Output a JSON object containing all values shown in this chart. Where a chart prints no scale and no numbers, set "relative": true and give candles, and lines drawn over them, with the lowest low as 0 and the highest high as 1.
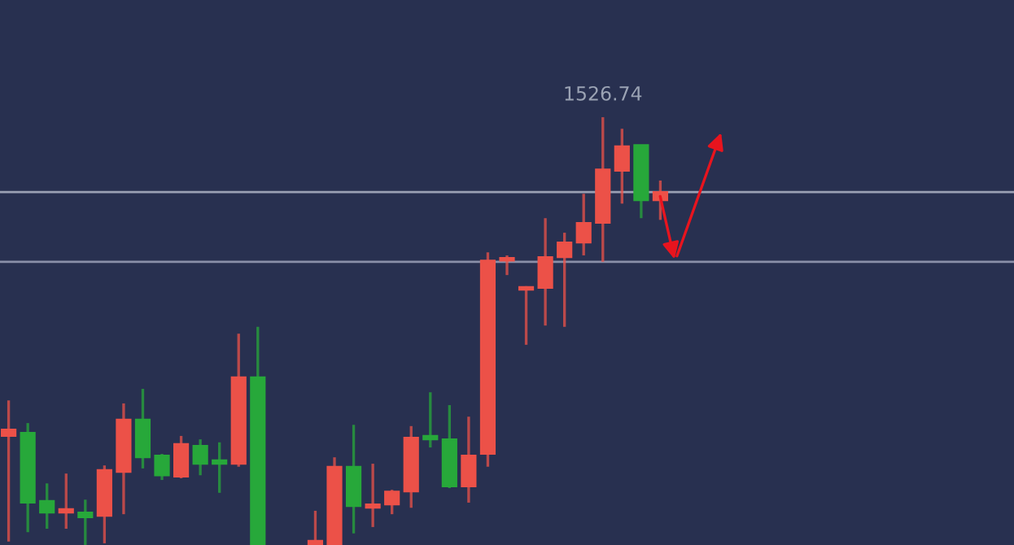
{
  "chart_data": {
    "type": "candlestick",
    "relative": true,
    "categories": [
      null,
      null,
      null,
      null,
      null,
      null,
      null,
      null,
      null,
      null,
      null,
      null,
      null,
      null,
      null,
      null,
      null,
      null,
      null,
      null,
      null,
      null,
      null,
      null,
      null,
      null,
      null,
      null,
      null,
      null,
      null,
      null,
      null,
      null,
      null,
      null,
      null,
      null,
      null,
      null,
      null,
      null,
      null,
      null,
      null,
      null,
      null,
      null,
      null,
      null,
      null,
      null,
      null
    ],
    "ohlc": [
      [
        0.255,
        0.338,
        0.008,
        0.27
      ],
      [
        0.262,
        0.285,
        0.03,
        0.099
      ],
      [
        0.103,
        0.144,
        0.038,
        0.076
      ],
      [
        0.076,
        0.167,
        0.038,
        0.084
      ],
      [
        0.076,
        0.106,
        0,
        0.065
      ],
      [
        0.068,
        0.186,
        0.004,
        0.175
      ],
      [
        0.171,
        0.331,
        0.072,
        0.293
      ],
      [
        0.293,
        0.365,
        0.179,
        0.205
      ],
      [
        0.209,
        0.213,
        0.152,
        0.163
      ],
      [
        0.16,
        0.255,
        0.156,
        0.236
      ],
      [
        0.232,
        0.247,
        0.163,
        0.19
      ],
      [
        0.198,
        0.24,
        0.122,
        0.19
      ],
      [
        0.19,
        0.494,
        0.183,
        0.392
      ],
      [
        0.392,
        0.51,
        0,
        0
      ],
      null,
      null,
      [
        0,
        0.08,
        0,
        0.01
      ],
      [
        0,
        0.205,
        0,
        0.183
      ],
      [
        0.183,
        0.281,
        0.027,
        0.091
      ],
      [
        0.087,
        0.19,
        0.042,
        0.095
      ],
      [
        0.095,
        0.129,
        0.072,
        0.125
      ],
      [
        0.125,
        0.278,
        0.087,
        0.251
      ],
      [
        0.255,
        0.357,
        0.228,
        0.247
      ],
      [
        0.247,
        0.327,
        0.133,
        0.137
      ],
      [
        0.137,
        0.3,
        0.099,
        0.209
      ],
      [
        0.213,
        0.684,
        0.183,
        0.665
      ],
      [
        0.665,
        0.677,
        0.631,
        0.669
      ],
      [
        0.597,
        0.605,
        0.468,
        0.601
      ],
      [
        0.601,
        0.764,
        0.513,
        0.673
      ],
      [
        0.673,
        0.73,
        0.51,
        0.707
      ],
      [
        0.707,
        0.821,
        0.677,
        0.753
      ],
      [
        0.753,
        1,
        0.662,
        0.878
      ],
      [
        0.875,
        0.973,
        0.798,
        0.932
      ],
      [
        0.935,
        0.935,
        0.764,
        0.806
      ],
      [
        0.806,
        0.852,
        0.76,
        0.825
      ],
      null,
      null,
      null,
      null,
      null,
      null,
      null,
      null,
      null,
      null,
      null,
      null,
      null,
      null,
      null,
      null,
      null,
      null
    ],
    "colors": [
      "#ec5148",
      "#27a83a",
      "#27a83a",
      "#ec5148",
      "#27a83a",
      "#ec5148",
      "#ec5148",
      "#27a83a",
      "#27a83a",
      "#ec5148",
      "#27a83a",
      "#27a83a",
      "#ec5148",
      "#27a83a",
      null,
      null,
      "#ec5148",
      "#ec5148",
      "#27a83a",
      "#ec5148",
      "#ec5148",
      "#ec5148",
      "#27a83a",
      "#27a83a",
      "#ec5148",
      "#ec5148",
      "#ec5148",
      "#ec5148",
      "#ec5148",
      "#ec5148",
      "#ec5148",
      "#ec5148",
      "#ec5148",
      "#27a83a",
      "#ec5148",
      null,
      null,
      null,
      null,
      null,
      null,
      null,
      null,
      null,
      null,
      null,
      null,
      null,
      null,
      null,
      null,
      null,
      null
    ],
    "annotations": [
      "1526.74"
    ],
    "ref_lines": [
      {
        "axis": "y",
        "value": 0.825,
        "color": "#9aa0b4"
      },
      {
        "axis": "y",
        "value": 0.662,
        "color": "#8a8fa8"
      }
    ]
  }
}
